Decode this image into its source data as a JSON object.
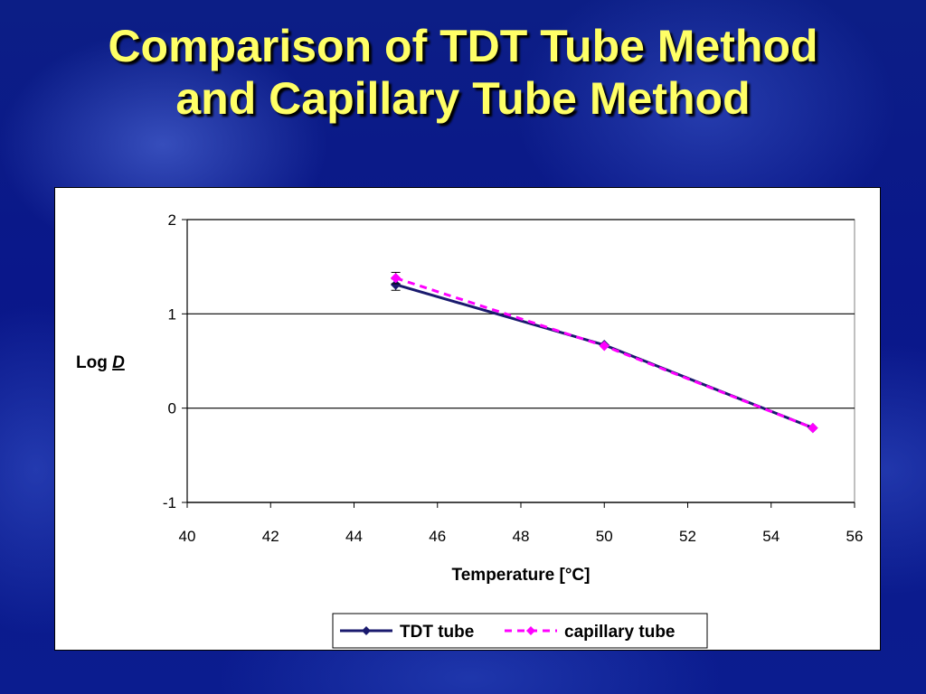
{
  "title_line1": "Comparison of TDT Tube Method",
  "title_line2": "and Capillary Tube Method",
  "chart_data": {
    "type": "line",
    "xlabel": "Temperature [°C]",
    "ylabel_main": "Log ",
    "ylabel_var": "D",
    "xlim": [
      40,
      56
    ],
    "ylim": [
      -1,
      2
    ],
    "x_ticks": [
      40,
      42,
      44,
      46,
      48,
      50,
      52,
      54,
      56
    ],
    "y_ticks": [
      2,
      1,
      0,
      -1
    ],
    "grid": "horizontal",
    "legend_position": "bottom",
    "series": [
      {
        "name": "TDT tube",
        "color": "#1a1a6e",
        "marker": "diamond",
        "linestyle": "solid",
        "x": [
          45,
          50,
          55
        ],
        "y": [
          1.31,
          0.67,
          -0.21
        ],
        "error": [
          0.06,
          0,
          0
        ]
      },
      {
        "name": "capillary tube",
        "color": "#ff00ff",
        "marker": "diamond",
        "linestyle": "dashed",
        "x": [
          45,
          50,
          55
        ],
        "y": [
          1.38,
          0.66,
          -0.21
        ],
        "error": [
          0.06,
          0,
          0
        ]
      }
    ]
  }
}
